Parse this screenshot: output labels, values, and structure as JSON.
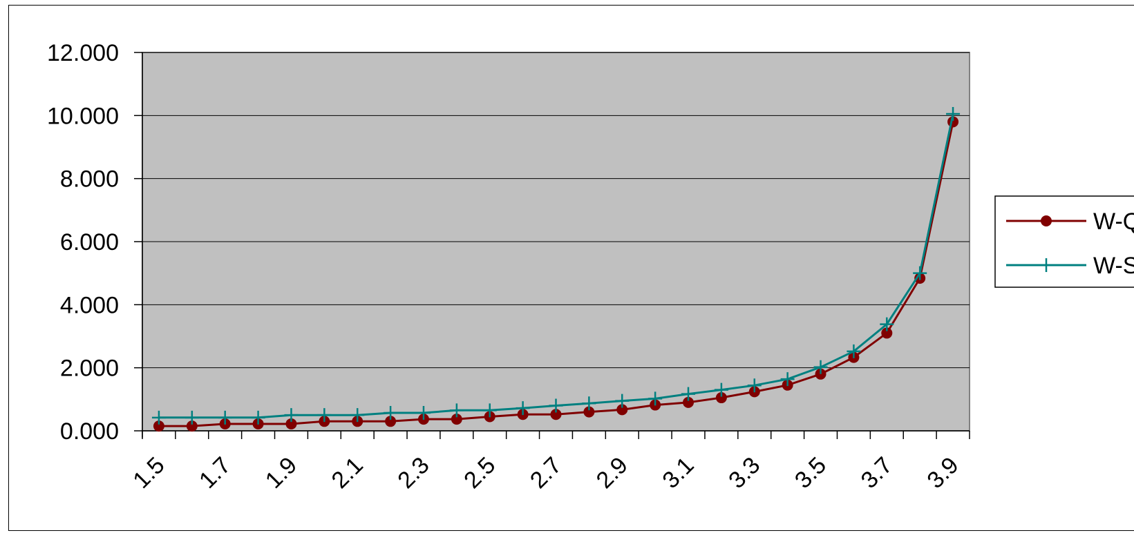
{
  "chart_data": {
    "type": "line",
    "title": "",
    "xlabel": "",
    "ylabel": "",
    "x": [
      1.5,
      1.6,
      1.7,
      1.8,
      1.9,
      2.0,
      2.1,
      2.2,
      2.3,
      2.4,
      2.5,
      2.6,
      2.7,
      2.8,
      2.9,
      3.0,
      3.1,
      3.2,
      3.3,
      3.4,
      3.5,
      3.6,
      3.7,
      3.8,
      3.9
    ],
    "x_tick_labels": [
      "1.5",
      "1.7",
      "1.9",
      "2.1",
      "2.3",
      "2.5",
      "2.7",
      "2.9",
      "3.1",
      "3.3",
      "3.5",
      "3.7",
      "3.9"
    ],
    "y_tick_labels": [
      "0.000",
      "2.000",
      "4.000",
      "6.000",
      "8.000",
      "10.000",
      "12.000"
    ],
    "ylim": [
      0,
      12
    ],
    "grid": true,
    "legend_position": "right",
    "plot_background": "#c0c0c0",
    "series": [
      {
        "name": "W-Q",
        "color": "#800000",
        "marker": "circle",
        "values": [
          0.15,
          0.15,
          0.22,
          0.22,
          0.22,
          0.3,
          0.3,
          0.3,
          0.37,
          0.37,
          0.45,
          0.52,
          0.52,
          0.6,
          0.67,
          0.82,
          0.9,
          1.05,
          1.24,
          1.45,
          1.8,
          2.33,
          3.1,
          4.84,
          9.8
        ]
      },
      {
        "name": "W-S",
        "color": "#008080",
        "marker": "plus",
        "values": [
          0.42,
          0.42,
          0.42,
          0.42,
          0.5,
          0.5,
          0.5,
          0.57,
          0.57,
          0.65,
          0.65,
          0.72,
          0.8,
          0.87,
          0.95,
          1.02,
          1.17,
          1.3,
          1.44,
          1.64,
          2.02,
          2.52,
          3.38,
          5.0,
          10.05
        ]
      }
    ]
  }
}
